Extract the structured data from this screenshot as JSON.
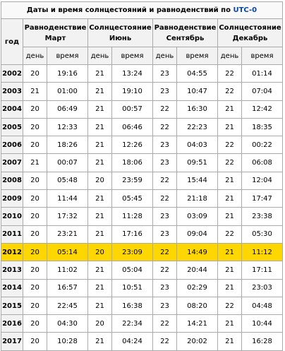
{
  "caption": {
    "prefix": "Даты и время солнцестояний и равноденствий по",
    "link": "UTC-0"
  },
  "headers": {
    "year": "год",
    "day": "день",
    "time": "время",
    "seasons": [
      {
        "line1": "Равноденствие",
        "line2": "Март"
      },
      {
        "line1": "Солнцестояние",
        "line2": "Июнь"
      },
      {
        "line1": "Равноденствие",
        "line2": "Сентябрь"
      },
      {
        "line1": "Солнцестояние",
        "line2": "Декабрь"
      }
    ]
  },
  "colors": {
    "highlight": "#ffd700",
    "link": "#0645ad",
    "header_bg": "#f2f2f2",
    "border": "#aaaaaa"
  },
  "highlighted_year": "2012",
  "rows": [
    {
      "year": "2002",
      "cells": [
        "20",
        "19:16",
        "21",
        "13:24",
        "23",
        "04:55",
        "22",
        "01:14"
      ]
    },
    {
      "year": "2003",
      "cells": [
        "21",
        "01:00",
        "21",
        "19:10",
        "23",
        "10:47",
        "22",
        "07:04"
      ]
    },
    {
      "year": "2004",
      "cells": [
        "20",
        "06:49",
        "21",
        "00:57",
        "22",
        "16:30",
        "21",
        "12:42"
      ]
    },
    {
      "year": "2005",
      "cells": [
        "20",
        "12:33",
        "21",
        "06:46",
        "22",
        "22:23",
        "21",
        "18:35"
      ]
    },
    {
      "year": "2006",
      "cells": [
        "20",
        "18:26",
        "21",
        "12:26",
        "23",
        "04:03",
        "22",
        "00:22"
      ]
    },
    {
      "year": "2007",
      "cells": [
        "21",
        "00:07",
        "21",
        "18:06",
        "23",
        "09:51",
        "22",
        "06:08"
      ]
    },
    {
      "year": "2008",
      "cells": [
        "20",
        "05:48",
        "20",
        "23:59",
        "22",
        "15:44",
        "21",
        "12:04"
      ]
    },
    {
      "year": "2009",
      "cells": [
        "20",
        "11:44",
        "21",
        "05:45",
        "22",
        "21:18",
        "21",
        "17:47"
      ]
    },
    {
      "year": "2010",
      "cells": [
        "20",
        "17:32",
        "21",
        "11:28",
        "23",
        "03:09",
        "21",
        "23:38"
      ]
    },
    {
      "year": "2011",
      "cells": [
        "20",
        "23:21",
        "21",
        "17:16",
        "23",
        "09:04",
        "22",
        "05:30"
      ]
    },
    {
      "year": "2012",
      "cells": [
        "20",
        "05:14",
        "20",
        "23:09",
        "22",
        "14:49",
        "21",
        "11:12"
      ]
    },
    {
      "year": "2013",
      "cells": [
        "20",
        "11:02",
        "21",
        "05:04",
        "22",
        "20:44",
        "21",
        "17:11"
      ]
    },
    {
      "year": "2014",
      "cells": [
        "20",
        "16:57",
        "21",
        "10:51",
        "23",
        "02:29",
        "21",
        "23:03"
      ]
    },
    {
      "year": "2015",
      "cells": [
        "20",
        "22:45",
        "21",
        "16:38",
        "23",
        "08:20",
        "22",
        "04:48"
      ]
    },
    {
      "year": "2016",
      "cells": [
        "20",
        "04:30",
        "20",
        "22:34",
        "22",
        "14:21",
        "21",
        "10:44"
      ]
    },
    {
      "year": "2017",
      "cells": [
        "20",
        "10:28",
        "21",
        "04:24",
        "22",
        "20:02",
        "21",
        "16:28"
      ]
    }
  ]
}
